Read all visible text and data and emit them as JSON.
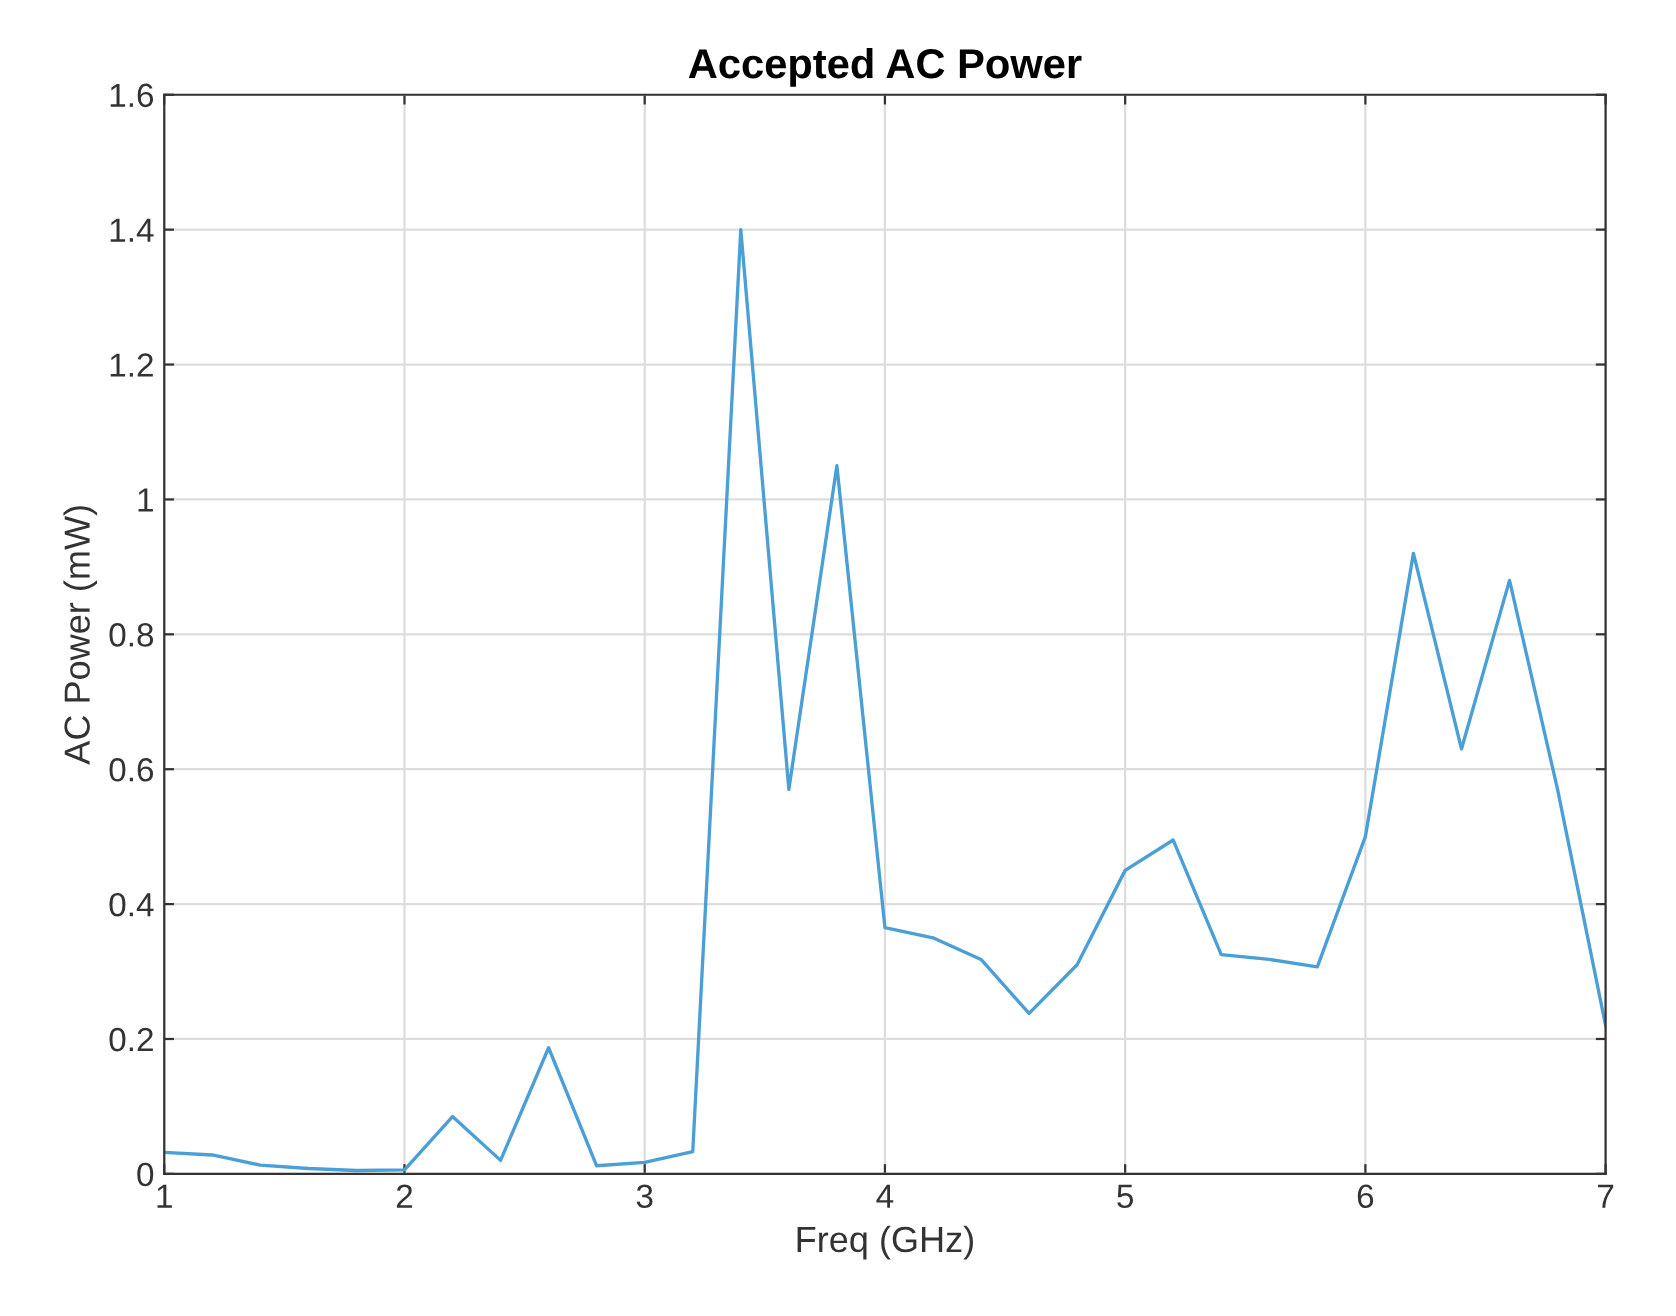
{
  "chart_data": {
    "type": "line",
    "title": "Accepted AC Power",
    "xlabel": "Freq (GHz)",
    "ylabel": "AC Power (mW)",
    "x": [
      1,
      1.2,
      1.4,
      1.6,
      1.8,
      2.0,
      2.2,
      2.4,
      2.6,
      2.8,
      3.0,
      3.2,
      3.4,
      3.6,
      3.8,
      4.0,
      4.2,
      4.4,
      4.6,
      4.8,
      5.0,
      5.2,
      5.4,
      5.6,
      5.8,
      6.0,
      6.2,
      6.4,
      6.6,
      6.8,
      7.0
    ],
    "series": [
      {
        "color": "#4a9fd6",
        "values": [
          0.032,
          0.028,
          0.013,
          0.008,
          0.005,
          0.006,
          0.085,
          0.02,
          0.187,
          0.012,
          0.017,
          0.033,
          1.4,
          0.57,
          1.05,
          0.365,
          0.35,
          0.318,
          0.238,
          0.31,
          0.45,
          0.495,
          0.325,
          0.318,
          0.307,
          0.5,
          0.92,
          0.63,
          0.88,
          0.57,
          0.22
        ]
      }
    ],
    "xlim": [
      1,
      7
    ],
    "xticks": [
      1,
      2,
      3,
      4,
      5,
      6,
      7
    ],
    "ylim": [
      0,
      1.6
    ],
    "yticks": [
      0,
      0.2,
      0.4,
      0.6,
      0.8,
      1,
      1.2,
      1.4,
      1.6
    ],
    "grid": true
  }
}
